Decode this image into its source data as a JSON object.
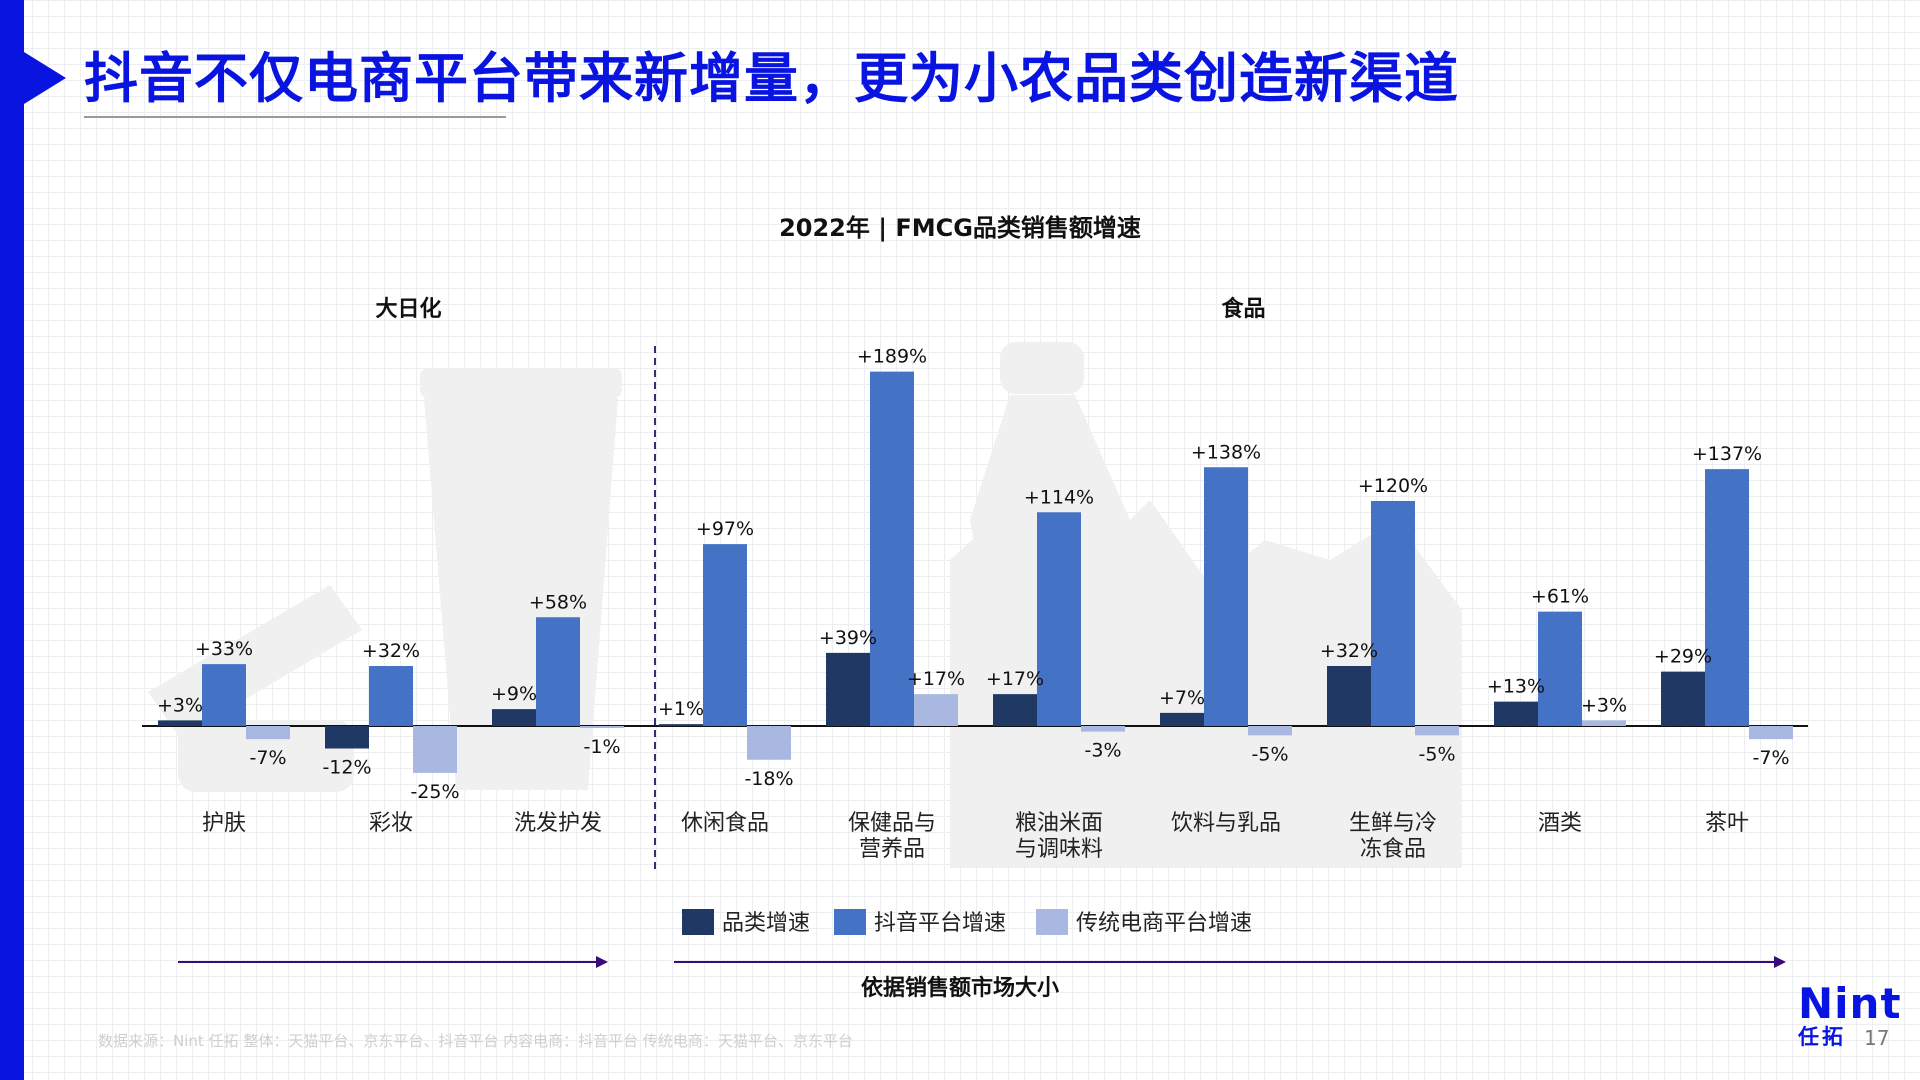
{
  "slide": {
    "title": "抖音不仅电商平台带来新增量，更为小农品类创造新渠道",
    "arrow_caption": "依据销售额市场大小",
    "source": "数据来源：Nint 任拓    整体：天猫平台、京东平台、抖音平台    内容电商：抖音平台  传统电商：天猫平台、京东平台",
    "logo_en": "Nint",
    "logo_cn": "任拓",
    "page_number": "17"
  },
  "chart_data": {
    "type": "bar",
    "title": "2022年 | FMCG品类销售额增速",
    "groups": [
      {
        "label": "大日化",
        "first_category": 0,
        "last_category": 2
      },
      {
        "label": "食品",
        "first_category": 3,
        "last_category": 9
      }
    ],
    "categories": [
      [
        "护肤"
      ],
      [
        "彩妆"
      ],
      [
        "洗发护发"
      ],
      [
        "休闲食品"
      ],
      [
        "保健品与",
        "营养品"
      ],
      [
        "粮油米面",
        "与调味料"
      ],
      [
        "饮料与乳品"
      ],
      [
        "生鲜与冷",
        "冻食品"
      ],
      [
        "酒类"
      ],
      [
        "茶叶"
      ]
    ],
    "series": [
      {
        "name": "品类增速",
        "color": "#1f3864",
        "values": [
          3,
          -12,
          9,
          1,
          39,
          17,
          7,
          32,
          13,
          29
        ],
        "labels": [
          "+3%",
          "-12%",
          "+9%",
          "+1%",
          "+39%",
          "+17%",
          "+7%",
          "+32%",
          "+13%",
          "+29%"
        ]
      },
      {
        "name": "抖音平台增速",
        "color": "#4472c4",
        "values": [
          33,
          32,
          58,
          97,
          189,
          114,
          138,
          120,
          61,
          137
        ],
        "labels": [
          "+33%",
          "+32%",
          "+58%",
          "+97%",
          "+189%",
          "+114%",
          "+138%",
          "+120%",
          "+61%",
          "+137%"
        ]
      },
      {
        "name": "传统电商平台增速",
        "color": "#a9b8e0",
        "values": [
          -7,
          -25,
          -1,
          -18,
          17,
          -3,
          -5,
          -5,
          3,
          -7
        ],
        "labels": [
          "-7%",
          "-25%",
          "-1%",
          "-18%",
          "+17%",
          "-3%",
          "-5%",
          "-5%",
          "+3%",
          "-7%"
        ]
      }
    ],
    "ylim": [
      -30,
      190
    ],
    "legend": "bottom",
    "grid": false
  }
}
